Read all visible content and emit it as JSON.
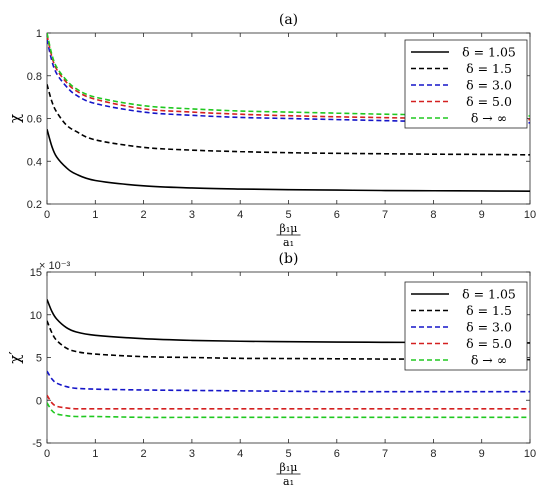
{
  "chart_data": [
    {
      "type": "line",
      "panel_label": "(a)",
      "ylabel": "χ",
      "xlabel_num": "β₁μ",
      "xlabel_den": "a₁",
      "xlim": [
        0,
        10
      ],
      "ylim": [
        0.2,
        1
      ],
      "xticks": [
        "0",
        "1",
        "2",
        "3",
        "4",
        "5",
        "6",
        "7",
        "8",
        "9",
        "10"
      ],
      "yticks": [
        "0.2",
        "0.4",
        "0.6",
        "0.8",
        "1"
      ],
      "ytick_values": [
        0.2,
        0.4,
        0.6,
        0.8,
        1.0
      ],
      "exponent_label": "",
      "grid": false,
      "legend_position": "top-right",
      "series": [
        {
          "name": "δ = 1.05",
          "color": "#000000",
          "dash": "solid",
          "x": [
            0,
            0.1,
            0.2,
            0.4,
            0.6,
            1,
            2,
            3,
            4,
            5,
            6,
            7,
            8,
            9,
            10
          ],
          "y": [
            0.55,
            0.47,
            0.42,
            0.37,
            0.34,
            0.31,
            0.285,
            0.275,
            0.27,
            0.267,
            0.265,
            0.263,
            0.262,
            0.261,
            0.26
          ]
        },
        {
          "name": "δ = 1.5",
          "color": "#000000",
          "dash": "dashed",
          "x": [
            0,
            0.1,
            0.2,
            0.4,
            0.6,
            1,
            2,
            3,
            4,
            5,
            6,
            7,
            8,
            9,
            10
          ],
          "y": [
            0.76,
            0.68,
            0.63,
            0.57,
            0.54,
            0.5,
            0.465,
            0.452,
            0.445,
            0.44,
            0.437,
            0.435,
            0.433,
            0.432,
            0.43
          ]
        },
        {
          "name": "δ = 3.0",
          "color": "#1515c8",
          "dash": "dashed",
          "x": [
            0,
            0.1,
            0.2,
            0.4,
            0.6,
            1,
            2,
            3,
            4,
            5,
            6,
            7,
            8,
            9,
            10
          ],
          "y": [
            0.97,
            0.87,
            0.81,
            0.75,
            0.71,
            0.67,
            0.63,
            0.615,
            0.605,
            0.6,
            0.595,
            0.59,
            0.585,
            0.582,
            0.58
          ]
        },
        {
          "name": "δ = 5.0",
          "color": "#d42020",
          "dash": "dashed",
          "x": [
            0,
            0.1,
            0.2,
            0.4,
            0.6,
            1,
            2,
            3,
            4,
            5,
            6,
            7,
            8,
            9,
            10
          ],
          "y": [
            0.99,
            0.89,
            0.83,
            0.77,
            0.73,
            0.69,
            0.645,
            0.63,
            0.62,
            0.613,
            0.608,
            0.604,
            0.6,
            0.597,
            0.595
          ]
        },
        {
          "name": "δ → ∞",
          "color": "#20c820",
          "dash": "dashed",
          "x": [
            0,
            0.1,
            0.2,
            0.4,
            0.6,
            1,
            2,
            3,
            4,
            5,
            6,
            7,
            8,
            9,
            10
          ],
          "y": [
            1.0,
            0.9,
            0.84,
            0.78,
            0.74,
            0.7,
            0.66,
            0.645,
            0.635,
            0.63,
            0.625,
            0.62,
            0.617,
            0.614,
            0.612
          ]
        }
      ]
    },
    {
      "type": "line",
      "panel_label": "(b)",
      "ylabel": "χ′",
      "xlabel_num": "β₁μ",
      "xlabel_den": "a₁",
      "xlim": [
        0,
        10
      ],
      "ylim": [
        -0.005,
        0.015
      ],
      "xticks": [
        "0",
        "1",
        "2",
        "3",
        "4",
        "5",
        "6",
        "7",
        "8",
        "9",
        "10"
      ],
      "yticks": [
        "-5",
        "0",
        "5",
        "10",
        "15"
      ],
      "ytick_values": [
        -0.005,
        0,
        0.005,
        0.01,
        0.015
      ],
      "exponent_label": "× 10⁻³",
      "grid": false,
      "legend_position": "top-right",
      "series": [
        {
          "name": "δ = 1.05",
          "color": "#000000",
          "dash": "solid",
          "x": [
            0,
            0.1,
            0.2,
            0.4,
            0.6,
            1,
            2,
            3,
            4,
            5,
            6,
            7,
            8,
            9,
            10
          ],
          "y": [
            0.0118,
            0.0104,
            0.0095,
            0.0085,
            0.008,
            0.0076,
            0.0072,
            0.007,
            0.0069,
            0.00685,
            0.0068,
            0.00678,
            0.00676,
            0.00674,
            0.0067
          ]
        },
        {
          "name": "δ = 1.5",
          "color": "#000000",
          "dash": "dashed",
          "x": [
            0,
            0.1,
            0.2,
            0.4,
            0.6,
            1,
            2,
            3,
            4,
            5,
            6,
            7,
            8,
            9,
            10
          ],
          "y": [
            0.0093,
            0.0079,
            0.007,
            0.0061,
            0.0057,
            0.0054,
            0.0051,
            0.005,
            0.0049,
            0.00488,
            0.00485,
            0.00482,
            0.0048,
            0.00478,
            0.00475
          ]
        },
        {
          "name": "δ = 3.0",
          "color": "#1515c8",
          "dash": "dashed",
          "x": [
            0,
            0.1,
            0.2,
            0.4,
            0.6,
            1,
            2,
            3,
            4,
            5,
            6,
            7,
            8,
            9,
            10
          ],
          "y": [
            0.0034,
            0.0025,
            0.002,
            0.0016,
            0.0014,
            0.0013,
            0.0012,
            0.00115,
            0.0011,
            0.00105,
            0.001,
            0.001,
            0.001,
            0.001,
            0.001
          ]
        },
        {
          "name": "δ = 5.0",
          "color": "#d42020",
          "dash": "dashed",
          "x": [
            0,
            0.1,
            0.2,
            0.4,
            0.6,
            1,
            2,
            3,
            4,
            5,
            6,
            7,
            8,
            9,
            10
          ],
          "y": [
            0.0006,
            -0.0003,
            -0.0007,
            -0.0009,
            -0.001,
            -0.001,
            -0.001,
            -0.001,
            -0.001,
            -0.001,
            -0.001,
            -0.001,
            -0.001,
            -0.001,
            -0.001
          ]
        },
        {
          "name": "δ → ∞",
          "color": "#20c820",
          "dash": "dashed",
          "x": [
            0,
            0.1,
            0.2,
            0.4,
            0.6,
            1,
            2,
            3,
            4,
            5,
            6,
            7,
            8,
            9,
            10
          ],
          "y": [
            -0.0003,
            -0.0012,
            -0.0016,
            -0.0018,
            -0.0019,
            -0.0019,
            -0.002,
            -0.002,
            -0.002,
            -0.002,
            -0.002,
            -0.002,
            -0.002,
            -0.002,
            -0.002
          ]
        }
      ]
    }
  ]
}
